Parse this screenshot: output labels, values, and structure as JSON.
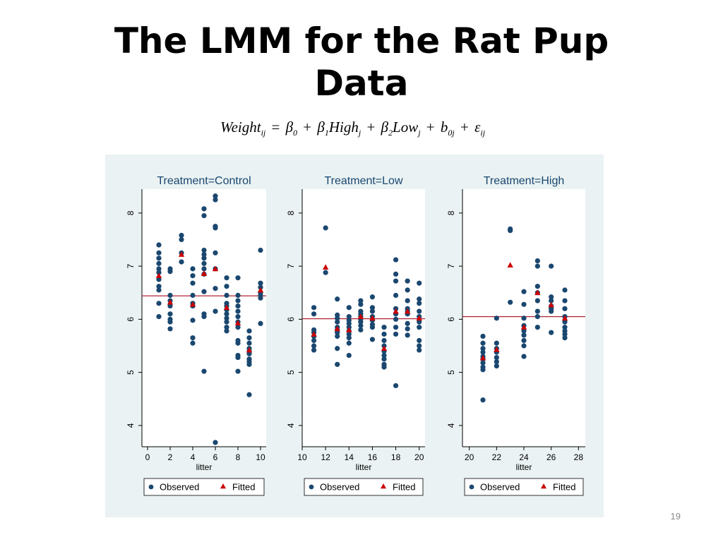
{
  "slide": {
    "title_line1": "The LMM for the Rat Pup",
    "title_line2": "Data",
    "page_number": "19"
  },
  "equation": {
    "lhs": "Weight",
    "lhs_sub": "ij",
    "eq": "=",
    "b0": "β",
    "b0_sub": "0",
    "plus1": "+",
    "b1": "β",
    "b1_sub": "1",
    "high": "High",
    "high_sub": "j",
    "plus2": "+",
    "b2": "β",
    "b2_sub": "2",
    "low": "Low",
    "low_sub": "j",
    "plus3": "+",
    "rand": "b",
    "rand_sub": "0j",
    "plus4": "+",
    "eps": "ε",
    "eps_sub": "ij"
  },
  "colors": {
    "panel_bg": "#eaf2f3",
    "plot_bg": "#ffffff",
    "observed": "#1a476f",
    "fitted": "#cc0000",
    "mean_line": "#b22234",
    "subtitle": "#1a476f"
  },
  "chart_data": [
    {
      "type": "scatter",
      "title": "Treatment=Control",
      "xlabel": "litter",
      "ylabel": "",
      "xlim": [
        -0.5,
        10.5
      ],
      "ylim": [
        3.6,
        8.45
      ],
      "xticks": [
        0,
        2,
        4,
        6,
        8,
        10
      ],
      "yticks": [
        4,
        5,
        6,
        7,
        8
      ],
      "grid": false,
      "legend": [
        "Observed",
        "Fitted"
      ],
      "legend_position": "bottom",
      "mean_line": 6.44,
      "series": [
        {
          "name": "Observed",
          "points": [
            [
              1,
              7.4
            ],
            [
              1,
              7.25
            ],
            [
              1,
              7.15
            ],
            [
              1,
              7.05
            ],
            [
              1,
              6.95
            ],
            [
              1,
              6.88
            ],
            [
              1,
              6.75
            ],
            [
              1,
              6.62
            ],
            [
              1,
              6.55
            ],
            [
              1,
              6.3
            ],
            [
              1,
              6.05
            ],
            [
              2,
              6.95
            ],
            [
              2,
              6.9
            ],
            [
              2,
              6.45
            ],
            [
              2,
              6.35
            ],
            [
              2,
              6.25
            ],
            [
              2,
              6.1
            ],
            [
              2,
              6.0
            ],
            [
              2,
              5.95
            ],
            [
              2,
              5.82
            ],
            [
              3,
              7.58
            ],
            [
              3,
              7.5
            ],
            [
              3,
              7.25
            ],
            [
              3,
              7.08
            ],
            [
              4,
              6.95
            ],
            [
              4,
              6.82
            ],
            [
              4,
              6.68
            ],
            [
              4,
              6.45
            ],
            [
              4,
              6.3
            ],
            [
              4,
              6.25
            ],
            [
              4,
              5.98
            ],
            [
              4,
              5.65
            ],
            [
              4,
              5.55
            ],
            [
              5,
              8.08
            ],
            [
              5,
              7.95
            ],
            [
              5,
              7.3
            ],
            [
              5,
              7.22
            ],
            [
              5,
              7.15
            ],
            [
              5,
              7.05
            ],
            [
              5,
              6.95
            ],
            [
              5,
              6.85
            ],
            [
              5,
              6.52
            ],
            [
              5,
              6.1
            ],
            [
              5,
              6.05
            ],
            [
              5,
              5.02
            ],
            [
              6,
              8.32
            ],
            [
              6,
              8.25
            ],
            [
              6,
              7.75
            ],
            [
              6,
              7.72
            ],
            [
              6,
              7.25
            ],
            [
              6,
              6.95
            ],
            [
              6,
              6.58
            ],
            [
              6,
              6.15
            ],
            [
              6,
              3.68
            ],
            [
              7,
              6.78
            ],
            [
              7,
              6.62
            ],
            [
              7,
              6.45
            ],
            [
              7,
              6.3
            ],
            [
              7,
              6.25
            ],
            [
              7,
              6.18
            ],
            [
              7,
              6.1
            ],
            [
              7,
              6.02
            ],
            [
              7,
              5.95
            ],
            [
              7,
              5.85
            ],
            [
              7,
              5.78
            ],
            [
              8,
              6.78
            ],
            [
              8,
              6.45
            ],
            [
              8,
              6.35
            ],
            [
              8,
              6.25
            ],
            [
              8,
              6.15
            ],
            [
              8,
              6.05
            ],
            [
              8,
              5.95
            ],
            [
              8,
              5.85
            ],
            [
              8,
              5.6
            ],
            [
              8,
              5.55
            ],
            [
              8,
              5.32
            ],
            [
              8,
              5.28
            ],
            [
              8,
              5.02
            ],
            [
              9,
              5.78
            ],
            [
              9,
              5.65
            ],
            [
              9,
              5.55
            ],
            [
              9,
              5.45
            ],
            [
              9,
              5.4
            ],
            [
              9,
              5.35
            ],
            [
              9,
              5.25
            ],
            [
              9,
              5.2
            ],
            [
              9,
              5.15
            ],
            [
              9,
              4.58
            ],
            [
              10,
              7.3
            ],
            [
              10,
              6.68
            ],
            [
              10,
              6.6
            ],
            [
              10,
              6.5
            ],
            [
              10,
              6.45
            ],
            [
              10,
              6.4
            ],
            [
              10,
              5.92
            ]
          ]
        },
        {
          "name": "Fitted",
          "points": [
            [
              1,
              6.82
            ],
            [
              2,
              6.32
            ],
            [
              3,
              7.22
            ],
            [
              4,
              6.28
            ],
            [
              5,
              6.86
            ],
            [
              6,
              6.95
            ],
            [
              7,
              6.22
            ],
            [
              8,
              5.93
            ],
            [
              9,
              5.42
            ],
            [
              10,
              6.55
            ]
          ]
        }
      ]
    },
    {
      "type": "scatter",
      "title": "Treatment=Low",
      "xlabel": "litter",
      "ylabel": "",
      "xlim": [
        10,
        20.5
      ],
      "ylim": [
        3.6,
        8.45
      ],
      "xticks": [
        10,
        12,
        14,
        16,
        18,
        20
      ],
      "yticks": [
        4,
        5,
        6,
        7,
        8
      ],
      "grid": false,
      "legend": [
        "Observed",
        "Fitted"
      ],
      "legend_position": "bottom",
      "mean_line": 6.01,
      "series": [
        {
          "name": "Observed",
          "points": [
            [
              11,
              6.22
            ],
            [
              11,
              6.1
            ],
            [
              11,
              5.8
            ],
            [
              11,
              5.75
            ],
            [
              11,
              5.68
            ],
            [
              11,
              5.6
            ],
            [
              11,
              5.5
            ],
            [
              11,
              5.42
            ],
            [
              12,
              7.72
            ],
            [
              12,
              6.88
            ],
            [
              13,
              6.38
            ],
            [
              13,
              6.08
            ],
            [
              13,
              6.02
            ],
            [
              13,
              5.95
            ],
            [
              13,
              5.85
            ],
            [
              13,
              5.8
            ],
            [
              13,
              5.75
            ],
            [
              13,
              5.68
            ],
            [
              13,
              5.45
            ],
            [
              13,
              5.15
            ],
            [
              14,
              6.22
            ],
            [
              14,
              6.05
            ],
            [
              14,
              5.98
            ],
            [
              14,
              5.92
            ],
            [
              14,
              5.85
            ],
            [
              14,
              5.78
            ],
            [
              14,
              5.72
            ],
            [
              14,
              5.65
            ],
            [
              14,
              5.55
            ],
            [
              14,
              5.32
            ],
            [
              15,
              6.35
            ],
            [
              15,
              6.28
            ],
            [
              15,
              6.15
            ],
            [
              15,
              6.1
            ],
            [
              15,
              6.05
            ],
            [
              15,
              6.0
            ],
            [
              15,
              5.95
            ],
            [
              15,
              5.88
            ],
            [
              15,
              5.8
            ],
            [
              16,
              6.42
            ],
            [
              16,
              6.22
            ],
            [
              16,
              6.15
            ],
            [
              16,
              6.05
            ],
            [
              16,
              5.98
            ],
            [
              16,
              5.9
            ],
            [
              16,
              5.85
            ],
            [
              16,
              5.62
            ],
            [
              17,
              5.85
            ],
            [
              17,
              5.72
            ],
            [
              17,
              5.6
            ],
            [
              17,
              5.5
            ],
            [
              17,
              5.4
            ],
            [
              17,
              5.32
            ],
            [
              17,
              5.25
            ],
            [
              17,
              5.15
            ],
            [
              17,
              5.1
            ],
            [
              18,
              7.12
            ],
            [
              18,
              6.85
            ],
            [
              18,
              6.72
            ],
            [
              18,
              6.45
            ],
            [
              18,
              6.2
            ],
            [
              18,
              6.1
            ],
            [
              18,
              6.0
            ],
            [
              18,
              5.85
            ],
            [
              18,
              5.72
            ],
            [
              18,
              4.75
            ],
            [
              19,
              6.72
            ],
            [
              19,
              6.55
            ],
            [
              19,
              6.35
            ],
            [
              19,
              6.2
            ],
            [
              19,
              6.15
            ],
            [
              19,
              6.1
            ],
            [
              19,
              5.92
            ],
            [
              19,
              5.82
            ],
            [
              19,
              5.7
            ],
            [
              20,
              6.68
            ],
            [
              20,
              6.38
            ],
            [
              20,
              6.3
            ],
            [
              20,
              6.15
            ],
            [
              20,
              6.05
            ],
            [
              20,
              5.95
            ],
            [
              20,
              5.85
            ],
            [
              20,
              5.6
            ],
            [
              20,
              5.5
            ],
            [
              20,
              5.42
            ]
          ]
        },
        {
          "name": "Fitted",
          "points": [
            [
              11,
              5.72
            ],
            [
              12,
              6.98
            ],
            [
              13,
              5.82
            ],
            [
              14,
              5.8
            ],
            [
              15,
              6.05
            ],
            [
              16,
              6.02
            ],
            [
              17,
              5.45
            ],
            [
              18,
              6.15
            ],
            [
              19,
              6.15
            ],
            [
              20,
              6.02
            ]
          ]
        }
      ]
    },
    {
      "type": "scatter",
      "title": "Treatment=High",
      "xlabel": "litter",
      "ylabel": "",
      "xlim": [
        19.5,
        28.5
      ],
      "ylim": [
        3.6,
        8.45
      ],
      "xticks": [
        20,
        22,
        24,
        26,
        28
      ],
      "yticks": [
        4,
        5,
        6,
        7,
        8
      ],
      "grid": false,
      "legend": [
        "Observed",
        "Fitted"
      ],
      "legend_position": "bottom",
      "mean_line": 6.05,
      "series": [
        {
          "name": "Observed",
          "points": [
            [
              21,
              5.68
            ],
            [
              21,
              5.55
            ],
            [
              21,
              5.45
            ],
            [
              21,
              5.38
            ],
            [
              21,
              5.3
            ],
            [
              21,
              5.25
            ],
            [
              21,
              5.18
            ],
            [
              21,
              5.1
            ],
            [
              21,
              5.05
            ],
            [
              21,
              4.48
            ],
            [
              22,
              6.02
            ],
            [
              22,
              5.55
            ],
            [
              22,
              5.45
            ],
            [
              22,
              5.38
            ],
            [
              22,
              5.28
            ],
            [
              22,
              5.2
            ],
            [
              22,
              5.12
            ],
            [
              23,
              7.7
            ],
            [
              23,
              7.67
            ],
            [
              23,
              6.32
            ],
            [
              24,
              6.52
            ],
            [
              24,
              6.28
            ],
            [
              24,
              6.02
            ],
            [
              24,
              5.88
            ],
            [
              24,
              5.78
            ],
            [
              24,
              5.7
            ],
            [
              24,
              5.6
            ],
            [
              24,
              5.5
            ],
            [
              24,
              5.3
            ],
            [
              25,
              7.1
            ],
            [
              25,
              7.0
            ],
            [
              25,
              6.62
            ],
            [
              25,
              6.5
            ],
            [
              25,
              6.35
            ],
            [
              25,
              6.15
            ],
            [
              25,
              6.05
            ],
            [
              25,
              5.85
            ],
            [
              26,
              7.0
            ],
            [
              26,
              6.42
            ],
            [
              26,
              6.35
            ],
            [
              26,
              6.25
            ],
            [
              26,
              6.2
            ],
            [
              26,
              6.15
            ],
            [
              26,
              5.75
            ],
            [
              27,
              6.55
            ],
            [
              27,
              6.35
            ],
            [
              27,
              6.2
            ],
            [
              27,
              6.05
            ],
            [
              27,
              5.95
            ],
            [
              27,
              5.85
            ],
            [
              27,
              5.78
            ],
            [
              27,
              5.72
            ],
            [
              27,
              5.65
            ]
          ]
        },
        {
          "name": "Fitted",
          "points": [
            [
              21,
              5.27
            ],
            [
              22,
              5.43
            ],
            [
              23,
              7.02
            ],
            [
              24,
              5.85
            ],
            [
              25,
              6.5
            ],
            [
              26,
              6.27
            ],
            [
              27,
              6.02
            ]
          ]
        }
      ]
    }
  ]
}
